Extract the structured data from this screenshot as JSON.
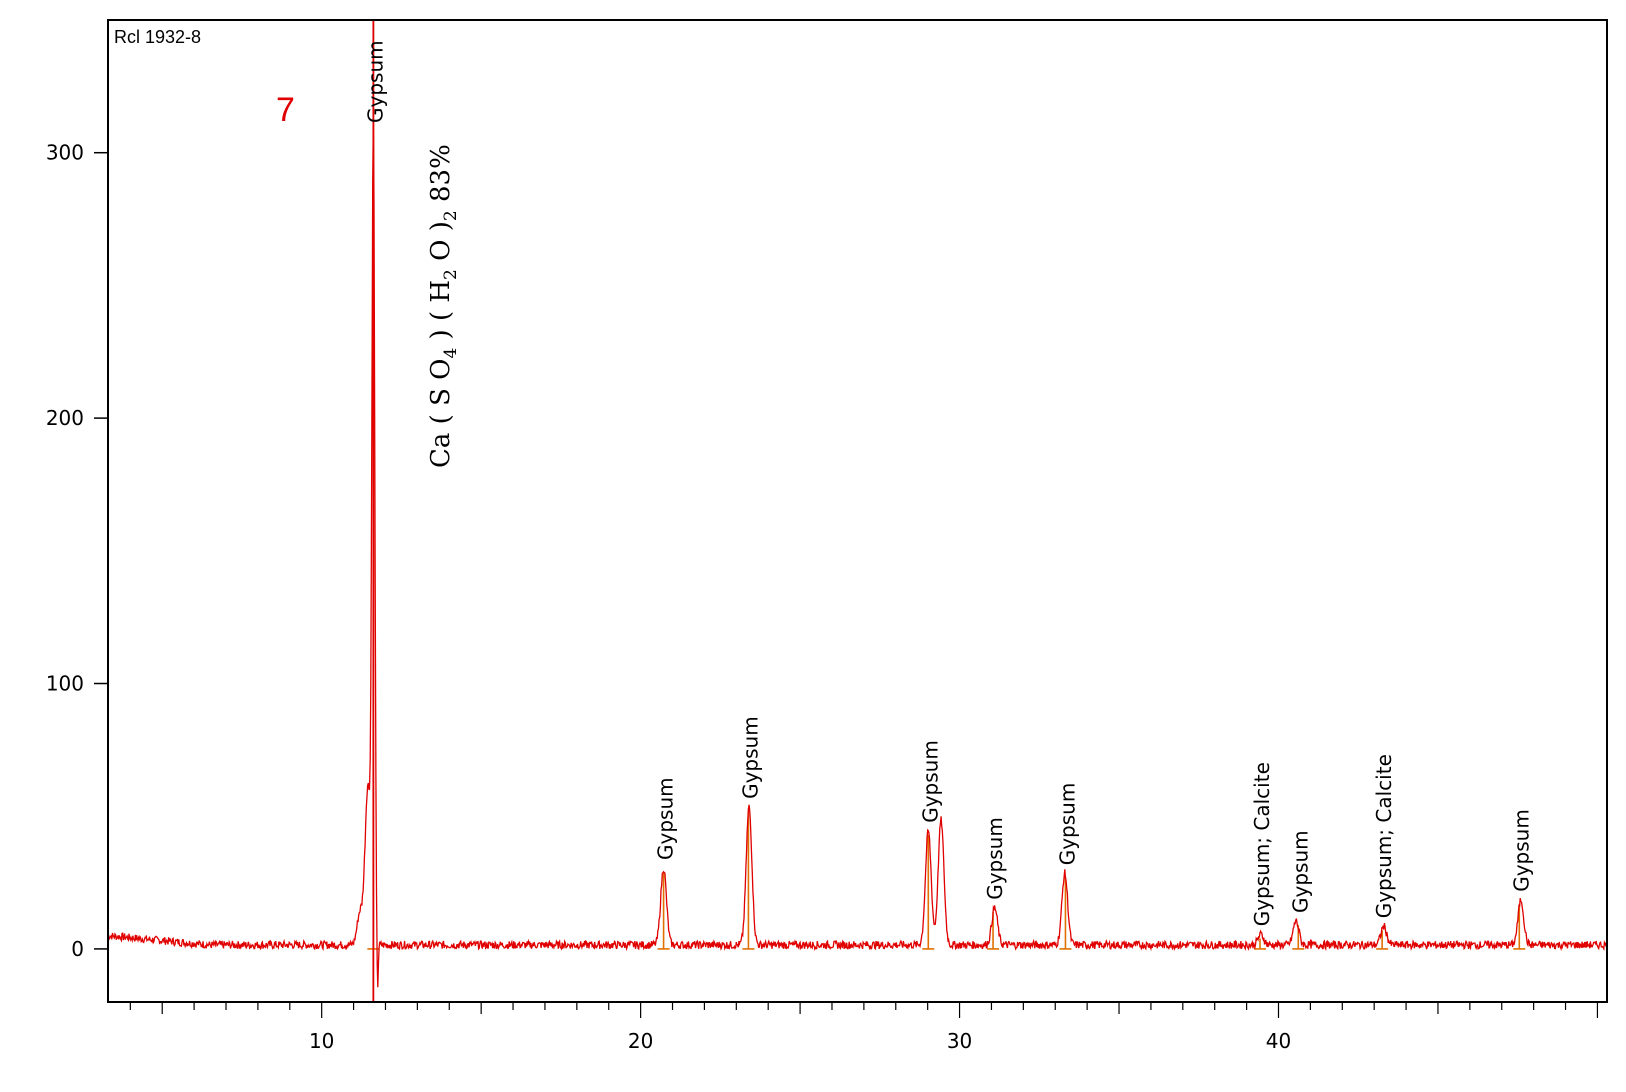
{
  "chart_data": {
    "type": "line",
    "sample_label": "Rcl 1932-8",
    "panel_number": "7",
    "phase": {
      "formula": "Ca ( S O4 ) ( H2 O )2 83%",
      "formula_parts": {
        "a": "Ca ( S O",
        "sub1": "4",
        "b": " ) ( H",
        "sub2": "2",
        "c": " O )",
        "sub3": "2",
        "d": " 83%"
      }
    },
    "xlim": [
      3.3,
      50.3
    ],
    "ylim": [
      -20,
      350
    ],
    "x_ticks": [
      10,
      20,
      30,
      40
    ],
    "y_ticks": [
      0,
      100,
      200,
      300
    ],
    "grid": false,
    "series": [
      {
        "color": "#e00000",
        "baseline": 1.5,
        "peaks": [
          {
            "x": 11.2,
            "y": 12
          },
          {
            "x": 11.45,
            "y": 60
          },
          {
            "x": 11.62,
            "y": 300
          },
          {
            "x": 11.75,
            "y": -20
          },
          {
            "x": 20.72,
            "y": 29
          },
          {
            "x": 23.4,
            "y": 52
          },
          {
            "x": 29.02,
            "y": 43
          },
          {
            "x": 29.42,
            "y": 47
          },
          {
            "x": 31.1,
            "y": 14
          },
          {
            "x": 33.3,
            "y": 27
          },
          {
            "x": 39.45,
            "y": 4
          },
          {
            "x": 40.55,
            "y": 9
          },
          {
            "x": 43.3,
            "y": 7
          },
          {
            "x": 47.6,
            "y": 17
          }
        ]
      }
    ],
    "reference_lines": {
      "color": "#e07000",
      "x": [
        11.62,
        20.72,
        23.38,
        29.02,
        31.05,
        33.32,
        39.42,
        40.62,
        43.25,
        47.55
      ],
      "heights": [
        350,
        29,
        52,
        43,
        14,
        27,
        4,
        9,
        7,
        17
      ]
    },
    "annotations": [
      {
        "x": 11.62,
        "text": "Gypsum"
      },
      {
        "x": 20.72,
        "text": "Gypsum"
      },
      {
        "x": 23.38,
        "text": "Gypsum"
      },
      {
        "x": 29.02,
        "text": "Gypsum"
      },
      {
        "x": 31.05,
        "text": "Gypsum"
      },
      {
        "x": 33.32,
        "text": "Gypsum"
      },
      {
        "x": 39.42,
        "text": "Gypsum; Calcite"
      },
      {
        "x": 40.62,
        "text": "Gypsum"
      },
      {
        "x": 43.25,
        "text": "Gypsum; Calcite"
      },
      {
        "x": 47.55,
        "text": "Gypsum"
      }
    ]
  }
}
